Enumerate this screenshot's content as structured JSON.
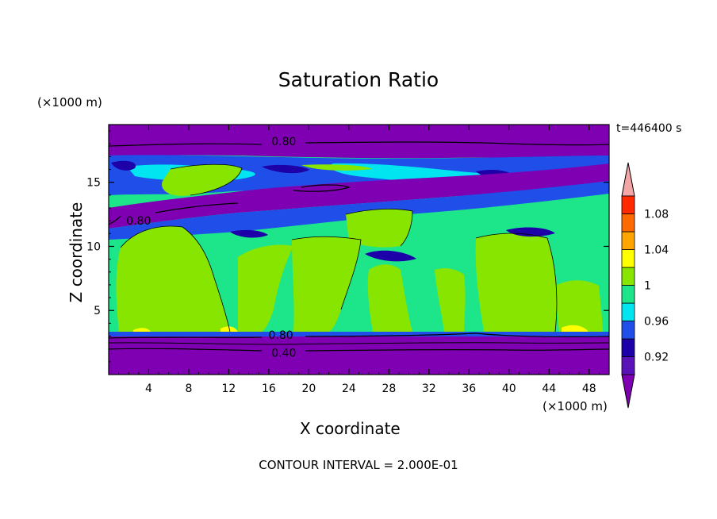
{
  "chart_data": {
    "type": "heatmap",
    "title": "Saturation Ratio",
    "xlabel": "X coordinate",
    "ylabel": "Z coordinate",
    "x_unit": "(×1000 m)",
    "y_unit": "(×1000 m)",
    "time_label": "t=446400 s",
    "footer": "CONTOUR INTERVAL = 2.000E-01",
    "xlim": [
      0,
      50
    ],
    "ylim": [
      0,
      19.5
    ],
    "x_ticks": [
      4,
      8,
      12,
      16,
      20,
      24,
      28,
      32,
      36,
      40,
      44,
      48
    ],
    "y_ticks": [
      5,
      10,
      15
    ],
    "colorbar": {
      "levels": [
        0.92,
        0.96,
        1,
        1.04,
        1.08
      ],
      "bins": [
        {
          "range": "< 0.90",
          "color": "#7f00b2"
        },
        {
          "range": "0.90-0.92",
          "color": "#5a13b8"
        },
        {
          "range": "0.92-0.94",
          "color": "#1d00a8"
        },
        {
          "range": "0.94-0.96",
          "color": "#1f4fe8"
        },
        {
          "range": "0.96-0.98",
          "color": "#00e5f0"
        },
        {
          "range": "0.98-1.00",
          "color": "#1de58a"
        },
        {
          "range": "1.00-1.02",
          "color": "#88e500"
        },
        {
          "range": "1.02-1.04",
          "color": "#ffff00"
        },
        {
          "range": "1.04-1.06",
          "color": "#ffa500"
        },
        {
          "range": "1.06-1.08",
          "color": "#ff6a00"
        },
        {
          "range": "1.08-1.10",
          "color": "#ff2a00"
        },
        {
          "range": "> 1.10",
          "color": "#f4a6a6"
        }
      ]
    },
    "layers": [
      {
        "z_range": [
          0,
          3.3
        ],
        "value_class": "< 0.90"
      },
      {
        "z_range": [
          3.3,
          12.0
        ],
        "value_class": "0.98-1.02"
      },
      {
        "z_range": [
          12.0,
          13.8
        ],
        "value_class": "0.98-1.02"
      },
      {
        "z_range": [
          13.8,
          17.5
        ],
        "value_class": "0.90-0.98"
      },
      {
        "z_range": [
          17.5,
          19.5
        ],
        "value_class": "< 0.90"
      }
    ],
    "contour_labels": [
      {
        "text": "0.80",
        "x": 17.5,
        "z": 18.2
      },
      {
        "text": "0.80",
        "x": 3.0,
        "z": 12.0
      },
      {
        "text": "0.80",
        "x": 17.2,
        "z": 3.1
      },
      {
        "text": "0.40",
        "x": 17.5,
        "z": 1.7
      }
    ]
  }
}
